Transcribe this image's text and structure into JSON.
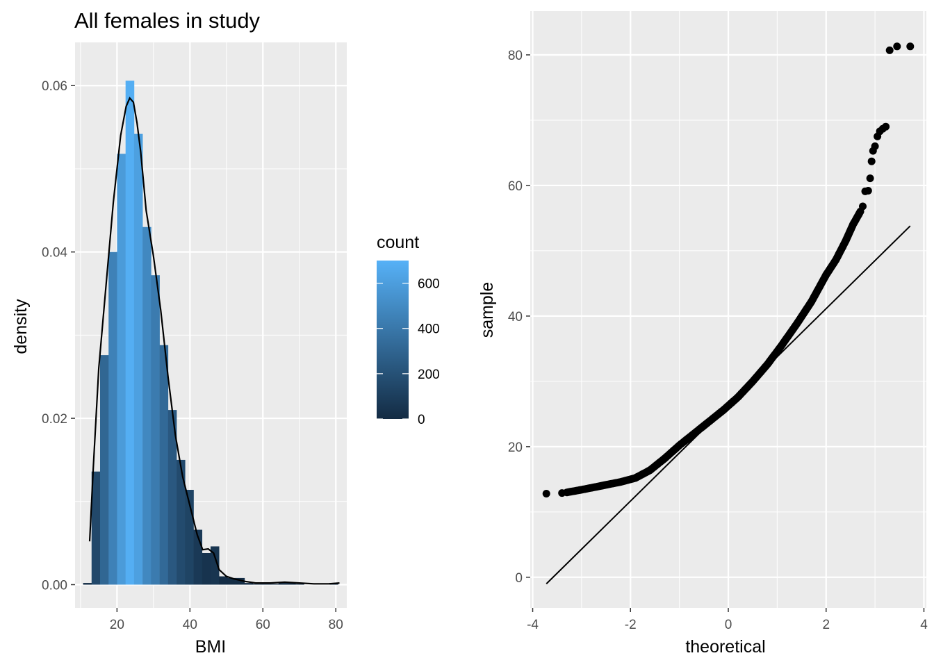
{
  "chart_data": [
    {
      "type": "bar",
      "title": "All females in study",
      "xlabel": "BMI",
      "ylabel": "density",
      "xlim": [
        8.5,
        83
      ],
      "ylim": [
        -0.0028,
        0.0652
      ],
      "x_ticks": [
        20,
        40,
        60,
        80
      ],
      "y_ticks": [
        0.0,
        0.02,
        0.04,
        0.06
      ],
      "y_tick_labels": [
        "0.00",
        "0.02",
        "0.04",
        "0.06"
      ],
      "grid": true,
      "bin_width": 2.33,
      "bins": [
        {
          "x0": 10.7,
          "density": 0.0002,
          "count": 5
        },
        {
          "x0": 13.03,
          "density": 0.0136,
          "count": 153
        },
        {
          "x0": 15.36,
          "density": 0.0276,
          "count": 311
        },
        {
          "x0": 17.69,
          "density": 0.04,
          "count": 451
        },
        {
          "x0": 20.02,
          "density": 0.0518,
          "count": 584
        },
        {
          "x0": 22.35,
          "density": 0.0606,
          "count": 683
        },
        {
          "x0": 24.68,
          "density": 0.0542,
          "count": 611
        },
        {
          "x0": 27.01,
          "density": 0.043,
          "count": 485
        },
        {
          "x0": 29.34,
          "density": 0.0372,
          "count": 419
        },
        {
          "x0": 31.67,
          "density": 0.0288,
          "count": 325
        },
        {
          "x0": 34.0,
          "density": 0.021,
          "count": 237
        },
        {
          "x0": 36.33,
          "density": 0.015,
          "count": 169
        },
        {
          "x0": 38.66,
          "density": 0.0114,
          "count": 129
        },
        {
          "x0": 40.99,
          "density": 0.0066,
          "count": 74
        },
        {
          "x0": 43.32,
          "density": 0.0038,
          "count": 43
        },
        {
          "x0": 45.65,
          "density": 0.0046,
          "count": 52
        },
        {
          "x0": 47.98,
          "density": 0.001,
          "count": 11
        },
        {
          "x0": 50.31,
          "density": 0.0008,
          "count": 9
        },
        {
          "x0": 52.64,
          "density": 0.0008,
          "count": 9
        },
        {
          "x0": 54.97,
          "density": 0.0002,
          "count": 2
        },
        {
          "x0": 57.3,
          "density": 0.0001,
          "count": 1
        },
        {
          "x0": 59.63,
          "density": 0.0001,
          "count": 1
        },
        {
          "x0": 61.96,
          "density": 0.0001,
          "count": 1
        },
        {
          "x0": 64.29,
          "density": 0.0002,
          "count": 2
        },
        {
          "x0": 66.62,
          "density": 0.0002,
          "count": 2
        },
        {
          "x0": 68.95,
          "density": 0.0001,
          "count": 1
        },
        {
          "x0": 78.27,
          "density": 0.0002,
          "count": 2
        }
      ],
      "density_curve": {
        "x": [
          12.5,
          13.5,
          15,
          17,
          19,
          21,
          22.5,
          23.5,
          24.5,
          25.5,
          26.5,
          28,
          30,
          32,
          34,
          36,
          38,
          40,
          42,
          43.5,
          45,
          46.5,
          48,
          50,
          52,
          55,
          58,
          62,
          66,
          70,
          74,
          78,
          81
        ],
        "y": [
          0.0052,
          0.014,
          0.026,
          0.036,
          0.046,
          0.054,
          0.0575,
          0.0585,
          0.058,
          0.0555,
          0.052,
          0.045,
          0.0395,
          0.033,
          0.025,
          0.018,
          0.013,
          0.0095,
          0.006,
          0.0042,
          0.0043,
          0.0038,
          0.0018,
          0.001,
          0.0007,
          0.0004,
          0.0002,
          0.0002,
          0.0003,
          0.0002,
          0.0001,
          0.0001,
          0.0002
        ]
      },
      "legend": {
        "title": "count",
        "placement": "right",
        "ticks": [
          0,
          200,
          400,
          600
        ],
        "range": [
          0,
          700
        ],
        "color_low": "#132b43",
        "color_high": "#56b1f7"
      },
      "panel_background": "#ebebeb",
      "grid_color": "#ffffff",
      "line_color": "#000000"
    },
    {
      "type": "scatter",
      "title": "",
      "xlabel": "theoretical",
      "ylabel": "sample",
      "xlim": [
        -4.05,
        4.05
      ],
      "ylim": [
        -4.7,
        86.7
      ],
      "x_ticks": [
        -4,
        -2,
        0,
        2,
        4
      ],
      "y_ticks": [
        0,
        20,
        40,
        60,
        80
      ],
      "grid": true,
      "qq_line": {
        "x": [
          -3.72,
          3.72
        ],
        "y": [
          -1.0,
          53.8
        ]
      },
      "outlier_points": [
        {
          "x": -3.72,
          "y": 12.8
        },
        {
          "x": -3.4,
          "y": 12.9
        },
        {
          "x": 2.75,
          "y": 56.8
        },
        {
          "x": 2.8,
          "y": 59.1
        },
        {
          "x": 2.86,
          "y": 59.2
        },
        {
          "x": 2.9,
          "y": 61.1
        },
        {
          "x": 2.93,
          "y": 63.7
        },
        {
          "x": 2.96,
          "y": 65.3
        },
        {
          "x": 3.0,
          "y": 66.0
        },
        {
          "x": 3.05,
          "y": 67.5
        },
        {
          "x": 3.1,
          "y": 68.3
        },
        {
          "x": 3.16,
          "y": 68.7
        },
        {
          "x": 3.22,
          "y": 69.0
        },
        {
          "x": 3.3,
          "y": 80.7
        },
        {
          "x": 3.45,
          "y": 81.3
        },
        {
          "x": 3.72,
          "y": 81.3
        }
      ],
      "sample_quantile_curve": {
        "x": [
          -3.3,
          -3.0,
          -2.6,
          -2.2,
          -1.9,
          -1.6,
          -1.3,
          -1.0,
          -0.7,
          -0.4,
          -0.1,
          0.2,
          0.5,
          0.8,
          1.1,
          1.4,
          1.7,
          2.0,
          2.2,
          2.4,
          2.55,
          2.7
        ],
        "y": [
          13.0,
          13.4,
          14.0,
          14.6,
          15.2,
          16.4,
          18.2,
          20.2,
          22.0,
          23.8,
          25.6,
          27.6,
          30.0,
          32.6,
          35.6,
          38.8,
          42.2,
          46.3,
          48.6,
          51.5,
          54.0,
          56.0
        ]
      },
      "panel_background": "#ebebeb",
      "grid_color": "#ffffff",
      "point_color": "#000000"
    }
  ]
}
